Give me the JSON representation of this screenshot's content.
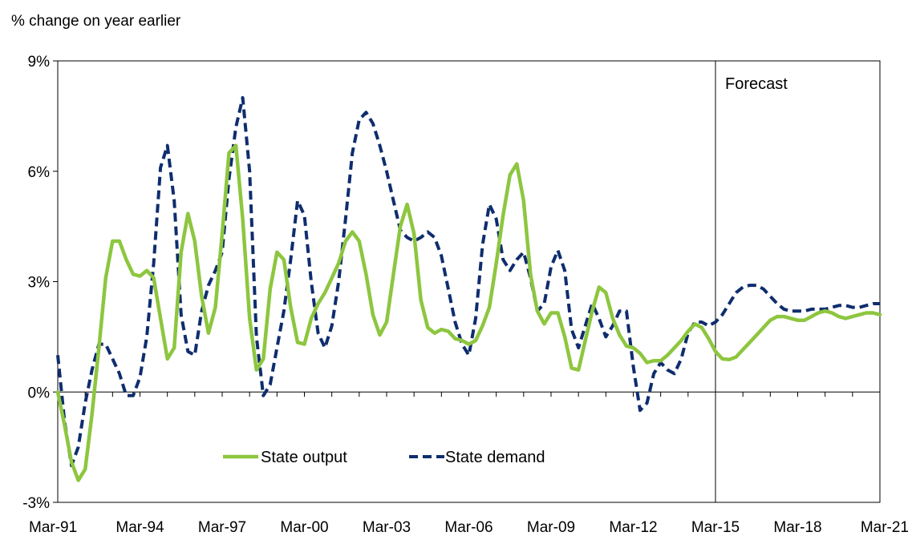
{
  "chart_data": {
    "type": "line",
    "ylabel": "% change on year earlier",
    "ylim": [
      -3,
      9
    ],
    "yticks": [
      -3,
      0,
      3,
      6,
      9
    ],
    "ytick_labels": [
      "-3%",
      "0%",
      "3%",
      "6%",
      "9%"
    ],
    "xlim": [
      1991.0,
      2021.0
    ],
    "xtick_labels": [
      "Mar-91",
      "Mar-94",
      "Mar-97",
      "Mar-00",
      "Mar-03",
      "Mar-06",
      "Mar-09",
      "Mar-12",
      "Mar-15",
      "Mar-18",
      "Mar-21"
    ],
    "forecast_start": 2015.0,
    "annotation": "Forecast",
    "legend_position": "bottom-center",
    "colors": {
      "output": "#8dc63f",
      "demand": "#0f2d6e",
      "axis": "#000000"
    },
    "series": [
      {
        "name": "State output",
        "style": "solid",
        "x": [
          1991.0,
          1991.25,
          1991.5,
          1991.75,
          1992.0,
          1992.25,
          1992.5,
          1992.75,
          1993.0,
          1993.25,
          1993.5,
          1993.75,
          1994.0,
          1994.25,
          1994.5,
          1994.75,
          1995.0,
          1995.25,
          1995.5,
          1995.75,
          1996.0,
          1996.25,
          1996.5,
          1996.75,
          1997.0,
          1997.25,
          1997.5,
          1997.75,
          1998.0,
          1998.25,
          1998.5,
          1998.75,
          1999.0,
          1999.25,
          1999.5,
          1999.75,
          2000.0,
          2000.25,
          2000.5,
          2000.75,
          2001.0,
          2001.25,
          2001.5,
          2001.75,
          2002.0,
          2002.25,
          2002.5,
          2002.75,
          2003.0,
          2003.25,
          2003.5,
          2003.75,
          2004.0,
          2004.25,
          2004.5,
          2004.75,
          2005.0,
          2005.25,
          2005.5,
          2005.75,
          2006.0,
          2006.25,
          2006.5,
          2006.75,
          2007.0,
          2007.25,
          2007.5,
          2007.75,
          2008.0,
          2008.25,
          2008.5,
          2008.75,
          2009.0,
          2009.25,
          2009.5,
          2009.75,
          2010.0,
          2010.25,
          2010.5,
          2010.75,
          2011.0,
          2011.25,
          2011.5,
          2011.75,
          2012.0,
          2012.25,
          2012.5,
          2012.75,
          2013.0,
          2013.25,
          2013.5,
          2013.75,
          2014.0,
          2014.25,
          2014.5,
          2014.75,
          2015.0,
          2015.25,
          2015.5,
          2015.75,
          2016.0,
          2016.25,
          2016.5,
          2016.75,
          2017.0,
          2017.25,
          2017.5,
          2017.75,
          2018.0,
          2018.25,
          2018.5,
          2018.75,
          2019.0,
          2019.25,
          2019.5,
          2019.75,
          2020.0,
          2020.25,
          2020.5,
          2020.75,
          2021.0
        ],
        "values": [
          0.0,
          -0.9,
          -1.9,
          -2.4,
          -2.1,
          -0.6,
          1.2,
          3.1,
          4.1,
          4.1,
          3.6,
          3.2,
          3.15,
          3.3,
          3.1,
          2.0,
          0.9,
          1.2,
          3.8,
          4.85,
          4.1,
          2.6,
          1.6,
          2.3,
          4.3,
          6.5,
          6.7,
          4.7,
          2.0,
          0.6,
          0.9,
          2.8,
          3.8,
          3.6,
          2.3,
          1.35,
          1.3,
          2.0,
          2.4,
          2.7,
          3.1,
          3.5,
          4.1,
          4.35,
          4.1,
          3.2,
          2.1,
          1.55,
          1.9,
          3.2,
          4.5,
          5.1,
          4.3,
          2.5,
          1.75,
          1.6,
          1.7,
          1.65,
          1.45,
          1.4,
          1.3,
          1.4,
          1.8,
          2.3,
          3.5,
          4.8,
          5.9,
          6.2,
          5.2,
          3.2,
          2.2,
          1.85,
          2.15,
          2.15,
          1.5,
          0.65,
          0.6,
          1.4,
          2.2,
          2.85,
          2.7,
          2.0,
          1.55,
          1.25,
          1.2,
          1.05,
          0.8,
          0.85,
          0.85,
          1.0,
          1.2,
          1.4,
          1.65,
          1.85,
          1.75,
          1.45,
          1.1,
          0.9,
          0.88,
          0.95,
          1.15,
          1.35,
          1.55,
          1.75,
          1.95,
          2.05,
          2.05,
          2.0,
          1.95,
          1.95,
          2.05,
          2.15,
          2.2,
          2.15,
          2.05,
          2.0,
          2.05,
          2.1,
          2.15,
          2.15,
          2.1
        ]
      },
      {
        "name": "State demand",
        "style": "dashed",
        "x": [
          1991.0,
          1991.25,
          1991.5,
          1991.75,
          1992.0,
          1992.25,
          1992.5,
          1992.75,
          1993.0,
          1993.25,
          1993.5,
          1993.75,
          1994.0,
          1994.25,
          1994.5,
          1994.75,
          1995.0,
          1995.25,
          1995.5,
          1995.75,
          1996.0,
          1996.25,
          1996.5,
          1996.75,
          1997.0,
          1997.25,
          1997.5,
          1997.75,
          1998.0,
          1998.25,
          1998.5,
          1998.75,
          1999.0,
          1999.25,
          1999.5,
          1999.75,
          2000.0,
          2000.25,
          2000.5,
          2000.75,
          2001.0,
          2001.25,
          2001.5,
          2001.75,
          2002.0,
          2002.25,
          2002.5,
          2002.75,
          2003.0,
          2003.25,
          2003.5,
          2003.75,
          2004.0,
          2004.25,
          2004.5,
          2004.75,
          2005.0,
          2005.25,
          2005.5,
          2005.75,
          2006.0,
          2006.25,
          2006.5,
          2006.75,
          2007.0,
          2007.25,
          2007.5,
          2007.75,
          2008.0,
          2008.25,
          2008.5,
          2008.75,
          2009.0,
          2009.25,
          2009.5,
          2009.75,
          2010.0,
          2010.25,
          2010.5,
          2010.75,
          2011.0,
          2011.25,
          2011.5,
          2011.75,
          2012.0,
          2012.25,
          2012.5,
          2012.75,
          2013.0,
          2013.25,
          2013.5,
          2013.75,
          2014.0,
          2014.25,
          2014.5,
          2014.75,
          2015.0,
          2015.25,
          2015.5,
          2015.75,
          2016.0,
          2016.25,
          2016.5,
          2016.75,
          2017.0,
          2017.25,
          2017.5,
          2017.75,
          2018.0,
          2018.25,
          2018.5,
          2018.75,
          2019.0,
          2019.25,
          2019.5,
          2019.75,
          2020.0,
          2020.25,
          2020.5,
          2020.75,
          2021.0
        ],
        "values": [
          1.0,
          -0.8,
          -2.0,
          -1.5,
          -0.3,
          0.6,
          1.3,
          1.3,
          0.9,
          0.5,
          -0.1,
          -0.1,
          0.4,
          1.5,
          3.5,
          6.1,
          6.7,
          5.2,
          2.1,
          1.1,
          1.0,
          2.2,
          2.9,
          3.3,
          3.8,
          5.8,
          7.2,
          8.0,
          6.0,
          1.5,
          -0.1,
          0.2,
          1.2,
          2.2,
          3.6,
          5.2,
          4.8,
          3.0,
          1.6,
          1.2,
          1.8,
          3.0,
          4.7,
          6.5,
          7.4,
          7.6,
          7.3,
          6.7,
          6.0,
          5.2,
          4.4,
          4.2,
          4.1,
          4.2,
          4.35,
          4.2,
          3.7,
          2.8,
          1.9,
          1.3,
          1.0,
          2.0,
          4.0,
          5.1,
          4.7,
          3.6,
          3.3,
          3.6,
          3.8,
          3.1,
          2.2,
          2.4,
          3.4,
          3.85,
          3.3,
          1.7,
          1.2,
          1.8,
          2.4,
          2.0,
          1.5,
          1.8,
          2.2,
          2.2,
          0.7,
          -0.5,
          -0.3,
          0.5,
          0.8,
          0.6,
          0.5,
          0.9,
          1.6,
          1.9,
          1.9,
          1.8,
          1.9,
          2.1,
          2.4,
          2.7,
          2.85,
          2.9,
          2.9,
          2.8,
          2.6,
          2.4,
          2.25,
          2.2,
          2.2,
          2.2,
          2.25,
          2.25,
          2.25,
          2.3,
          2.35,
          2.35,
          2.3,
          2.3,
          2.35,
          2.4,
          2.4
        ]
      }
    ]
  }
}
